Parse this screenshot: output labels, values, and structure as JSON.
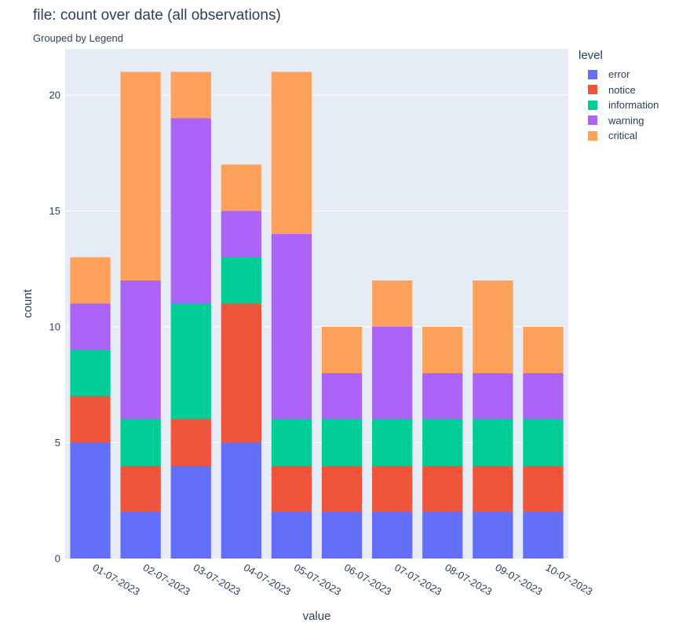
{
  "title": "file:  count over date (all observations)",
  "subtitle": "Grouped by Legend",
  "chart_data": {
    "type": "bar",
    "barmode": "stack",
    "categories": [
      "01-07-2023",
      "02-07-2023",
      "03-07-2023",
      "04-07-2023",
      "05-07-2023",
      "06-07-2023",
      "07-07-2023",
      "08-07-2023",
      "09-07-2023",
      "10-07-2023"
    ],
    "series": [
      {
        "name": "error",
        "color": "#636efa",
        "values": [
          5,
          2,
          4,
          5,
          2,
          2,
          2,
          2,
          2,
          2
        ]
      },
      {
        "name": "notice",
        "color": "#ef553b",
        "values": [
          2,
          2,
          2,
          6,
          2,
          2,
          2,
          2,
          2,
          2
        ]
      },
      {
        "name": "information",
        "color": "#00cc96",
        "values": [
          2,
          2,
          5,
          2,
          2,
          2,
          2,
          2,
          2,
          2
        ]
      },
      {
        "name": "warning",
        "color": "#ab63fa",
        "values": [
          2,
          6,
          8,
          2,
          8,
          2,
          4,
          2,
          2,
          2
        ]
      },
      {
        "name": "critical",
        "color": "#ffa15a",
        "values": [
          2,
          9,
          2,
          2,
          7,
          2,
          2,
          2,
          4,
          2
        ]
      }
    ],
    "xlabel": "value",
    "ylabel": "count",
    "ylim": [
      0,
      21
    ],
    "yticks": [
      0,
      5,
      10,
      15,
      20
    ],
    "legend_title": "level",
    "legend_position": "right",
    "grid": true,
    "plot_bgcolor": "#e5ecf6"
  }
}
